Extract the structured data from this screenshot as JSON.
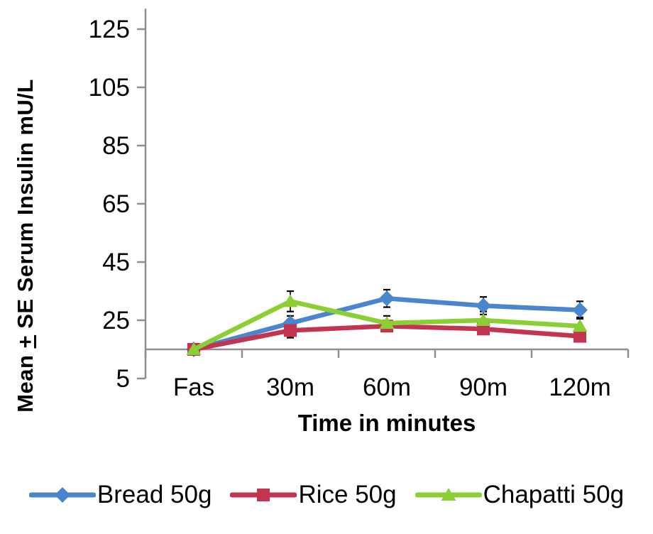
{
  "chart_data": {
    "type": "line",
    "xlabel": "Time in minutes",
    "ylabel": "Mean ± SE Serum Insulin mU/L",
    "ylabel_parts": {
      "prefix": "Mean ",
      "plus_minus": "+",
      "suffix": " SE Serum Insulin mU/L"
    },
    "categories": [
      "Fas",
      "30m",
      "60m",
      "90m",
      "120m"
    ],
    "y_ticks": [
      5,
      25,
      45,
      65,
      85,
      105,
      125
    ],
    "ylim": [
      5,
      132
    ],
    "x_axis_cross": 15,
    "grid": false,
    "legend_position": "bottom",
    "axis_color": "#8f8f8f",
    "error_bar_color": "#000000",
    "series": [
      {
        "name": "Bread 50g",
        "color": "#4a85cd",
        "marker": "diamond",
        "values": [
          15,
          24,
          32.5,
          30,
          28.5
        ],
        "se": [
          1,
          2.5,
          3,
          3,
          3
        ]
      },
      {
        "name": "Rice 50g",
        "color": "#c23450",
        "marker": "square",
        "values": [
          15,
          21.5,
          23,
          22,
          19.5
        ],
        "se": [
          1,
          2.5,
          1.5,
          1.5,
          1.5
        ]
      },
      {
        "name": "Chapatti 50g",
        "color": "#8ccf35",
        "marker": "triangle",
        "values": [
          15,
          31.5,
          24,
          25,
          23
        ],
        "se": [
          1,
          3.5,
          2.5,
          3,
          3
        ]
      }
    ]
  }
}
